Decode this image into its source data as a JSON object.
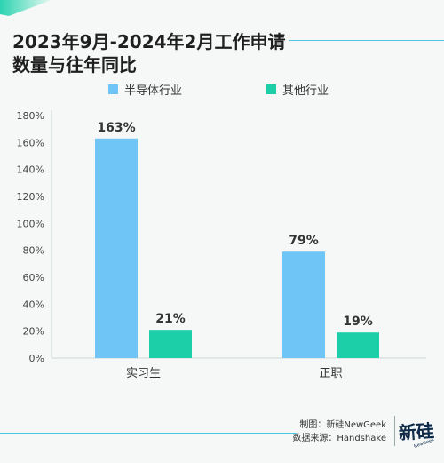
{
  "title": "2023年9月-2024年2月工作申请数量与往年同比",
  "chart_data": {
    "type": "bar",
    "categories": [
      "实习生",
      "正职"
    ],
    "series": [
      {
        "name": "半导体行业",
        "values": [
          163,
          79
        ],
        "color": "#6fc6f6"
      },
      {
        "name": "其他行业",
        "values": [
          21,
          19
        ],
        "color": "#1ccfa8"
      }
    ],
    "ylim": [
      0,
      180
    ],
    "yticks": [
      "0%",
      "20%",
      "40%",
      "60%",
      "80%",
      "100%",
      "120%",
      "140%",
      "160%",
      "180%"
    ],
    "value_suffix": "%",
    "grid": false,
    "legend_position": "top"
  },
  "footer": {
    "credit": "制图：新硅NewGeek",
    "source": "数据来源：Handshake"
  },
  "logo": {
    "text": "新硅",
    "subtext": "NewGeek",
    "color": "#0e2a48"
  }
}
